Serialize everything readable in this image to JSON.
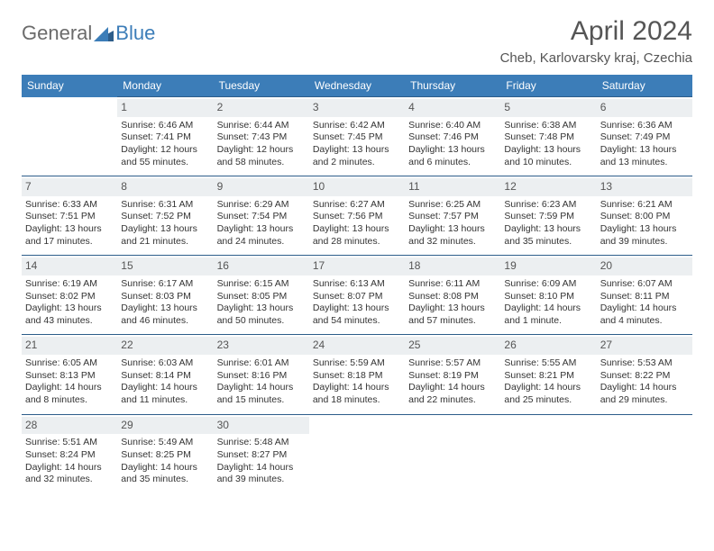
{
  "logo": {
    "text1": "General",
    "text2": "Blue"
  },
  "title": "April 2024",
  "location": "Cheb, Karlovarsky kraj, Czechia",
  "colors": {
    "header_bg": "#3c7db8",
    "header_fg": "#ffffff",
    "daynum_bg": "#eceff1",
    "cell_border": "#2d5d8a",
    "logo_gray": "#6b6b6b",
    "logo_blue": "#3c7db8",
    "page_bg": "#ffffff"
  },
  "weekdays": [
    "Sunday",
    "Monday",
    "Tuesday",
    "Wednesday",
    "Thursday",
    "Friday",
    "Saturday"
  ],
  "weeks": [
    [
      null,
      {
        "n": "1",
        "sr": "Sunrise: 6:46 AM",
        "ss": "Sunset: 7:41 PM",
        "dl": "Daylight: 12 hours and 55 minutes."
      },
      {
        "n": "2",
        "sr": "Sunrise: 6:44 AM",
        "ss": "Sunset: 7:43 PM",
        "dl": "Daylight: 12 hours and 58 minutes."
      },
      {
        "n": "3",
        "sr": "Sunrise: 6:42 AM",
        "ss": "Sunset: 7:45 PM",
        "dl": "Daylight: 13 hours and 2 minutes."
      },
      {
        "n": "4",
        "sr": "Sunrise: 6:40 AM",
        "ss": "Sunset: 7:46 PM",
        "dl": "Daylight: 13 hours and 6 minutes."
      },
      {
        "n": "5",
        "sr": "Sunrise: 6:38 AM",
        "ss": "Sunset: 7:48 PM",
        "dl": "Daylight: 13 hours and 10 minutes."
      },
      {
        "n": "6",
        "sr": "Sunrise: 6:36 AM",
        "ss": "Sunset: 7:49 PM",
        "dl": "Daylight: 13 hours and 13 minutes."
      }
    ],
    [
      {
        "n": "7",
        "sr": "Sunrise: 6:33 AM",
        "ss": "Sunset: 7:51 PM",
        "dl": "Daylight: 13 hours and 17 minutes."
      },
      {
        "n": "8",
        "sr": "Sunrise: 6:31 AM",
        "ss": "Sunset: 7:52 PM",
        "dl": "Daylight: 13 hours and 21 minutes."
      },
      {
        "n": "9",
        "sr": "Sunrise: 6:29 AM",
        "ss": "Sunset: 7:54 PM",
        "dl": "Daylight: 13 hours and 24 minutes."
      },
      {
        "n": "10",
        "sr": "Sunrise: 6:27 AM",
        "ss": "Sunset: 7:56 PM",
        "dl": "Daylight: 13 hours and 28 minutes."
      },
      {
        "n": "11",
        "sr": "Sunrise: 6:25 AM",
        "ss": "Sunset: 7:57 PM",
        "dl": "Daylight: 13 hours and 32 minutes."
      },
      {
        "n": "12",
        "sr": "Sunrise: 6:23 AM",
        "ss": "Sunset: 7:59 PM",
        "dl": "Daylight: 13 hours and 35 minutes."
      },
      {
        "n": "13",
        "sr": "Sunrise: 6:21 AM",
        "ss": "Sunset: 8:00 PM",
        "dl": "Daylight: 13 hours and 39 minutes."
      }
    ],
    [
      {
        "n": "14",
        "sr": "Sunrise: 6:19 AM",
        "ss": "Sunset: 8:02 PM",
        "dl": "Daylight: 13 hours and 43 minutes."
      },
      {
        "n": "15",
        "sr": "Sunrise: 6:17 AM",
        "ss": "Sunset: 8:03 PM",
        "dl": "Daylight: 13 hours and 46 minutes."
      },
      {
        "n": "16",
        "sr": "Sunrise: 6:15 AM",
        "ss": "Sunset: 8:05 PM",
        "dl": "Daylight: 13 hours and 50 minutes."
      },
      {
        "n": "17",
        "sr": "Sunrise: 6:13 AM",
        "ss": "Sunset: 8:07 PM",
        "dl": "Daylight: 13 hours and 54 minutes."
      },
      {
        "n": "18",
        "sr": "Sunrise: 6:11 AM",
        "ss": "Sunset: 8:08 PM",
        "dl": "Daylight: 13 hours and 57 minutes."
      },
      {
        "n": "19",
        "sr": "Sunrise: 6:09 AM",
        "ss": "Sunset: 8:10 PM",
        "dl": "Daylight: 14 hours and 1 minute."
      },
      {
        "n": "20",
        "sr": "Sunrise: 6:07 AM",
        "ss": "Sunset: 8:11 PM",
        "dl": "Daylight: 14 hours and 4 minutes."
      }
    ],
    [
      {
        "n": "21",
        "sr": "Sunrise: 6:05 AM",
        "ss": "Sunset: 8:13 PM",
        "dl": "Daylight: 14 hours and 8 minutes."
      },
      {
        "n": "22",
        "sr": "Sunrise: 6:03 AM",
        "ss": "Sunset: 8:14 PM",
        "dl": "Daylight: 14 hours and 11 minutes."
      },
      {
        "n": "23",
        "sr": "Sunrise: 6:01 AM",
        "ss": "Sunset: 8:16 PM",
        "dl": "Daylight: 14 hours and 15 minutes."
      },
      {
        "n": "24",
        "sr": "Sunrise: 5:59 AM",
        "ss": "Sunset: 8:18 PM",
        "dl": "Daylight: 14 hours and 18 minutes."
      },
      {
        "n": "25",
        "sr": "Sunrise: 5:57 AM",
        "ss": "Sunset: 8:19 PM",
        "dl": "Daylight: 14 hours and 22 minutes."
      },
      {
        "n": "26",
        "sr": "Sunrise: 5:55 AM",
        "ss": "Sunset: 8:21 PM",
        "dl": "Daylight: 14 hours and 25 minutes."
      },
      {
        "n": "27",
        "sr": "Sunrise: 5:53 AM",
        "ss": "Sunset: 8:22 PM",
        "dl": "Daylight: 14 hours and 29 minutes."
      }
    ],
    [
      {
        "n": "28",
        "sr": "Sunrise: 5:51 AM",
        "ss": "Sunset: 8:24 PM",
        "dl": "Daylight: 14 hours and 32 minutes."
      },
      {
        "n": "29",
        "sr": "Sunrise: 5:49 AM",
        "ss": "Sunset: 8:25 PM",
        "dl": "Daylight: 14 hours and 35 minutes."
      },
      {
        "n": "30",
        "sr": "Sunrise: 5:48 AM",
        "ss": "Sunset: 8:27 PM",
        "dl": "Daylight: 14 hours and 39 minutes."
      },
      null,
      null,
      null,
      null
    ]
  ]
}
